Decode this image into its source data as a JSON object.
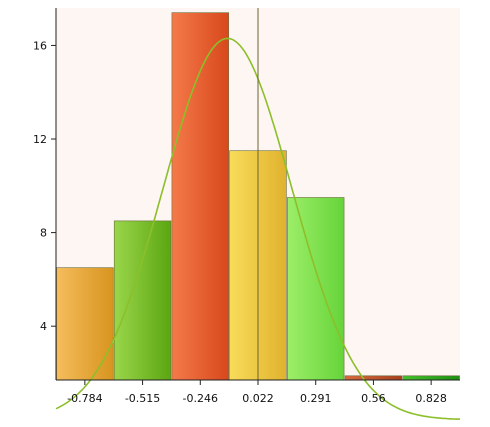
{
  "chart_data": {
    "type": "bar",
    "categories": [
      "-0.784",
      "-0.515",
      "-0.246",
      "0.022",
      "0.291",
      "0.56",
      "0.828"
    ],
    "values": [
      4.8,
      6.8,
      15.7,
      9.8,
      7.8,
      0.18,
      0.18
    ],
    "ylim": [
      1.7,
      17.6
    ],
    "yticks": [
      4,
      8,
      12,
      16
    ],
    "grid": false,
    "legend": "none",
    "overlay_curve": {
      "type": "normal",
      "peak_x": -0.12,
      "peak_y": 16.3,
      "sigma": 0.3
    },
    "reference_line_x": 0.022,
    "colors": {
      "bars": [
        [
          "#f5bd5c",
          "#d8941f"
        ],
        [
          "#9ad64a",
          "#5ba612"
        ],
        [
          "#f47a4a",
          "#d8481c"
        ],
        [
          "#f8dc5a",
          "#e0b22e"
        ],
        [
          "#9dee68",
          "#66d43a"
        ],
        [
          "#d86a3e",
          "#a8401e"
        ],
        [
          "#45c02c",
          "#1e8e12"
        ]
      ],
      "bar_stroke": "#6a6a3a",
      "curve": "#8dbf2a",
      "ref_line": "#6b6430",
      "background": "#fdf6f3",
      "axis": "#222222"
    }
  }
}
